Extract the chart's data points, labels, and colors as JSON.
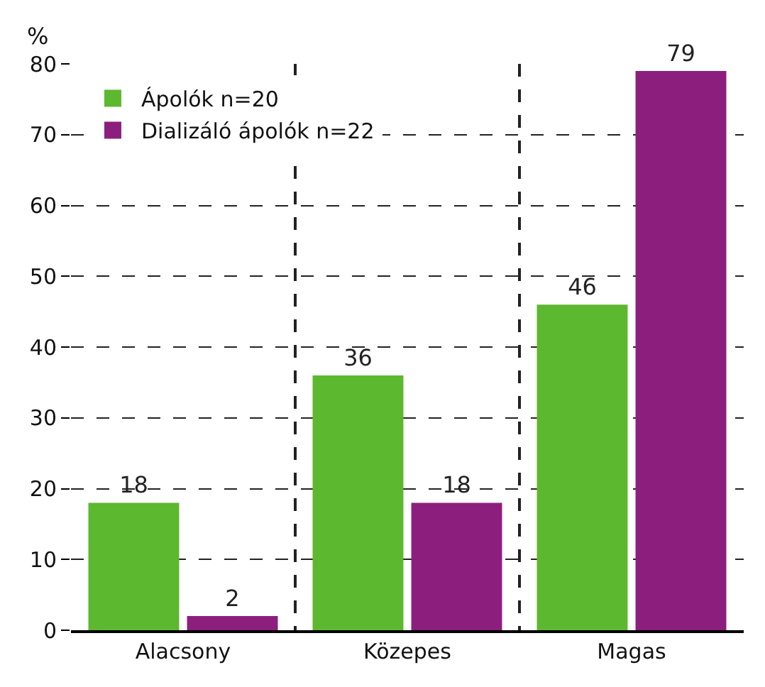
{
  "chart_data": {
    "type": "bar",
    "ylabel": "%",
    "categories": [
      "Alacsony",
      "Közepes",
      "Magas"
    ],
    "series": [
      {
        "name": "Ápolók n=20",
        "color": "#5cb82e",
        "values": [
          18,
          36,
          46
        ]
      },
      {
        "name": "Dializáló ápolók n=22",
        "color": "#8c1f7e",
        "values": [
          2,
          18,
          79
        ]
      }
    ],
    "ylim": [
      0,
      80
    ],
    "yticks": [
      0,
      10,
      20,
      30,
      40,
      50,
      60,
      70,
      80
    ],
    "grid": true,
    "legend": "top left",
    "data_labels": true
  }
}
